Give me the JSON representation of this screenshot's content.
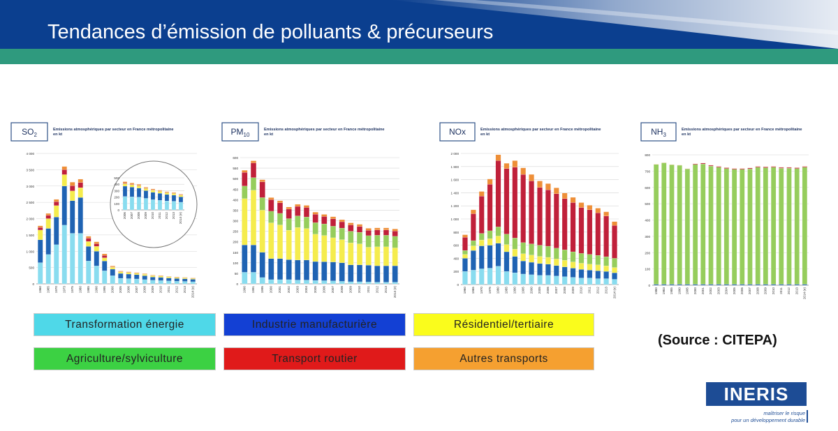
{
  "title": "Tendances d’émission de polluants & précurseurs",
  "source": "(Source : CITEPA)",
  "logo": {
    "name": "INERIS",
    "tagline_1": "maîtriser le risque",
    "tagline_2": "pour un développement durable"
  },
  "colors": {
    "header_blue": "#0b3f8f",
    "header_green": "#2f9a7e",
    "transformation": "#89dcef",
    "industrie": "#1f63b3",
    "residentiel": "#f5ec4d",
    "agriculture": "#96cd5c",
    "transport_routier": "#c0203a",
    "autres_transports": "#ee8f38"
  },
  "legend": [
    {
      "label": "Transformation énergie",
      "color": "#4fd8e8"
    },
    {
      "label": "Industrie manufacturière",
      "color": "#1340d4"
    },
    {
      "label": "Résidentiel/tertiaire",
      "color": "#fafc1c"
    },
    {
      "label": "Agriculture/sylviculture",
      "color": "#3cd143"
    },
    {
      "label": "Transport routier",
      "color": "#e01a1a"
    },
    {
      "label": "Autres transports",
      "color": "#f5a030"
    }
  ],
  "chart_data": [
    {
      "type": "bar",
      "pollutant": "SO",
      "subscript": "2",
      "subtitle": "Emissions atmosphériques par secteur en France métropolitaine",
      "unit": "en kt",
      "categories": [
        "1960",
        "1965",
        "1970",
        "1973",
        "1975",
        "1980",
        "1985",
        "1990",
        "1995",
        "2000",
        "2005",
        "2006",
        "2007",
        "2008",
        "2009",
        "2010",
        "2011",
        "2012",
        "2013",
        "2014 (e)"
      ],
      "ylim": [
        0,
        4000
      ],
      "yticks": [
        "0",
        "500",
        "1 000",
        "1 500",
        "2 000",
        "2 500",
        "3 000",
        "3 500",
        "4 000"
      ],
      "series": [
        {
          "key": "transformation",
          "values": [
            650,
            900,
            1200,
            1800,
            1550,
            1550,
            700,
            550,
            400,
            250,
            170,
            160,
            150,
            130,
            110,
            100,
            90,
            80,
            75,
            65
          ]
        },
        {
          "key": "industrie",
          "values": [
            700,
            800,
            850,
            1200,
            1000,
            1100,
            450,
            450,
            300,
            200,
            150,
            140,
            130,
            120,
            100,
            100,
            90,
            85,
            80,
            75
          ]
        },
        {
          "key": "residentiel",
          "values": [
            300,
            300,
            350,
            350,
            300,
            300,
            150,
            150,
            100,
            60,
            50,
            48,
            45,
            42,
            40,
            40,
            36,
            34,
            32,
            30
          ]
        },
        {
          "key": "transport_routier",
          "values": [
            80,
            100,
            120,
            150,
            160,
            160,
            100,
            80,
            70,
            10,
            5,
            5,
            5,
            5,
            4,
            4,
            4,
            4,
            4,
            4
          ]
        },
        {
          "key": "autres_transports",
          "values": [
            50,
            60,
            70,
            100,
            110,
            100,
            60,
            60,
            50,
            30,
            20,
            18,
            16,
            15,
            14,
            13,
            12,
            11,
            10,
            10
          ]
        }
      ],
      "inset": {
        "categories": [
          "2006",
          "2007",
          "2008",
          "2009",
          "2010",
          "2011",
          "2012",
          "2013",
          "2014 (e)"
        ],
        "ylim": [
          0,
          500
        ],
        "yticks": [
          "0",
          "100",
          "200",
          "300",
          "400",
          "500"
        ],
        "series": [
          {
            "key": "transformation",
            "values": [
              210,
              205,
              200,
              180,
              160,
              150,
              140,
              135,
              120
            ]
          },
          {
            "key": "industrie",
            "values": [
              160,
              150,
              140,
              120,
              115,
              110,
              100,
              95,
              85
            ]
          },
          {
            "key": "residentiel",
            "values": [
              40,
              38,
              36,
              33,
              32,
              30,
              28,
              27,
              25
            ]
          },
          {
            "key": "transport_routier",
            "values": [
              10,
              9,
              8,
              7,
              7,
              6,
              6,
              6,
              5
            ]
          },
          {
            "key": "autres_transports",
            "values": [
              20,
              18,
              16,
              14,
              13,
              12,
              11,
              10,
              10
            ]
          }
        ]
      }
    },
    {
      "type": "bar",
      "pollutant": "PM",
      "subscript": "10",
      "subtitle": "Emissions atmosphériques par secteur en France métropolitaine",
      "unit": "en kt",
      "categories": [
        "1990",
        "1991",
        "1995",
        "2000",
        "2001",
        "2002",
        "2003",
        "2004",
        "2005",
        "2006",
        "2007",
        "2008",
        "2009",
        "2010",
        "2011",
        "2012",
        "2013",
        "2014 (e)"
      ],
      "ylim": [
        0,
        600
      ],
      "yticks": [
        "0",
        "50",
        "100",
        "150",
        "200",
        "250",
        "300",
        "350",
        "400",
        "450",
        "500",
        "550",
        "600"
      ],
      "series": [
        {
          "key": "transformation",
          "values": [
            55,
            55,
            30,
            20,
            20,
            20,
            18,
            18,
            16,
            15,
            14,
            12,
            10,
            10,
            9,
            8,
            8,
            8
          ]
        },
        {
          "key": "industrie",
          "values": [
            130,
            130,
            120,
            100,
            100,
            95,
            95,
            95,
            90,
            90,
            90,
            88,
            80,
            80,
            80,
            78,
            78,
            78
          ]
        },
        {
          "key": "residentiel",
          "values": [
            220,
            260,
            200,
            170,
            160,
            140,
            155,
            150,
            130,
            125,
            115,
            110,
            105,
            100,
            85,
            90,
            90,
            85
          ]
        },
        {
          "key": "agriculture",
          "values": [
            60,
            60,
            60,
            55,
            55,
            55,
            55,
            55,
            55,
            55,
            55,
            55,
            55,
            55,
            55,
            55,
            55,
            55
          ]
        },
        {
          "key": "transport_routier",
          "values": [
            65,
            70,
            75,
            55,
            50,
            45,
            45,
            45,
            40,
            35,
            35,
            30,
            30,
            28,
            25,
            25,
            25,
            25
          ]
        },
        {
          "key": "autres_transports",
          "values": [
            10,
            10,
            10,
            10,
            10,
            10,
            10,
            10,
            10,
            10,
            10,
            10,
            10,
            10,
            10,
            10,
            10,
            10
          ]
        }
      ]
    },
    {
      "type": "bar",
      "pollutant": "NOx",
      "subscript": "",
      "subtitle": "Emissions atmosphériques par secteur en France métropolitaine",
      "unit": "en kt",
      "categories": [
        "1960",
        "1965",
        "1970",
        "1975",
        "1980",
        "1985",
        "1990",
        "1995",
        "2000",
        "2005",
        "2006",
        "2007",
        "2008",
        "2009",
        "2010",
        "2011",
        "2012",
        "2013",
        "2014 (e)"
      ],
      "ylim": [
        0,
        2000
      ],
      "yticks": [
        "0",
        "200",
        "400",
        "600",
        "800",
        "1 000",
        "1 200",
        "1 400",
        "1 600",
        "1 800",
        "2 000"
      ],
      "series": [
        {
          "key": "transformation",
          "values": [
            200,
            220,
            240,
            250,
            280,
            200,
            180,
            160,
            150,
            140,
            140,
            130,
            120,
            110,
            100,
            100,
            90,
            90,
            80
          ]
        },
        {
          "key": "industrie",
          "values": [
            200,
            300,
            350,
            350,
            350,
            300,
            250,
            200,
            190,
            180,
            170,
            160,
            150,
            140,
            130,
            120,
            120,
            110,
            100
          ]
        },
        {
          "key": "residentiel",
          "values": [
            60,
            70,
            90,
            100,
            110,
            110,
            110,
            110,
            110,
            110,
            105,
            100,
            100,
            95,
            95,
            90,
            90,
            85,
            80
          ]
        },
        {
          "key": "agriculture",
          "values": [
            60,
            80,
            100,
            120,
            140,
            160,
            170,
            170,
            170,
            170,
            170,
            165,
            160,
            155,
            150,
            150,
            145,
            140,
            140
          ]
        },
        {
          "key": "transport_routier",
          "values": [
            200,
            410,
            570,
            710,
            1010,
            1000,
            1080,
            1040,
            960,
            880,
            860,
            830,
            780,
            750,
            700,
            680,
            650,
            620,
            500
          ]
        },
        {
          "key": "autres_transports",
          "values": [
            40,
            60,
            70,
            80,
            90,
            80,
            100,
            100,
            100,
            100,
            95,
            90,
            85,
            80,
            75,
            70,
            70,
            65,
            60
          ]
        }
      ]
    },
    {
      "type": "bar",
      "pollutant": "NH",
      "subscript": "3",
      "subtitle": "Emissions atmosphériques par secteur en France métropolitaine",
      "unit": "en kt",
      "categories": [
        "1980",
        "1983",
        "1985",
        "1990",
        "1995",
        "2000",
        "2001",
        "2002",
        "2003",
        "2004",
        "2005",
        "2006",
        "2007",
        "2008",
        "2009",
        "2010",
        "2011",
        "2012",
        "2013",
        "2014 (e)"
      ],
      "ylim": [
        0,
        800
      ],
      "yticks": [
        "0",
        "100",
        "200",
        "300",
        "400",
        "500",
        "600",
        "700",
        "800"
      ],
      "series": [
        {
          "key": "industrie",
          "values": [
            6,
            6,
            6,
            6,
            6,
            6,
            6,
            6,
            6,
            6,
            6,
            6,
            6,
            6,
            6,
            6,
            6,
            6,
            6,
            6
          ]
        },
        {
          "key": "agriculture",
          "values": [
            735,
            745,
            733,
            730,
            708,
            735,
            738,
            725,
            718,
            710,
            705,
            705,
            708,
            718,
            715,
            718,
            712,
            712,
            710,
            718
          ]
        },
        {
          "key": "transport_routier",
          "values": [
            0,
            0,
            0,
            0,
            1,
            4,
            5,
            5,
            5,
            5,
            5,
            5,
            5,
            5,
            5,
            5,
            5,
            5,
            5,
            5
          ]
        },
        {
          "key": "autres_transports",
          "values": [
            1,
            1,
            1,
            1,
            1,
            1,
            1,
            1,
            1,
            1,
            1,
            1,
            1,
            1,
            1,
            1,
            1,
            1,
            1,
            1
          ]
        }
      ]
    }
  ]
}
